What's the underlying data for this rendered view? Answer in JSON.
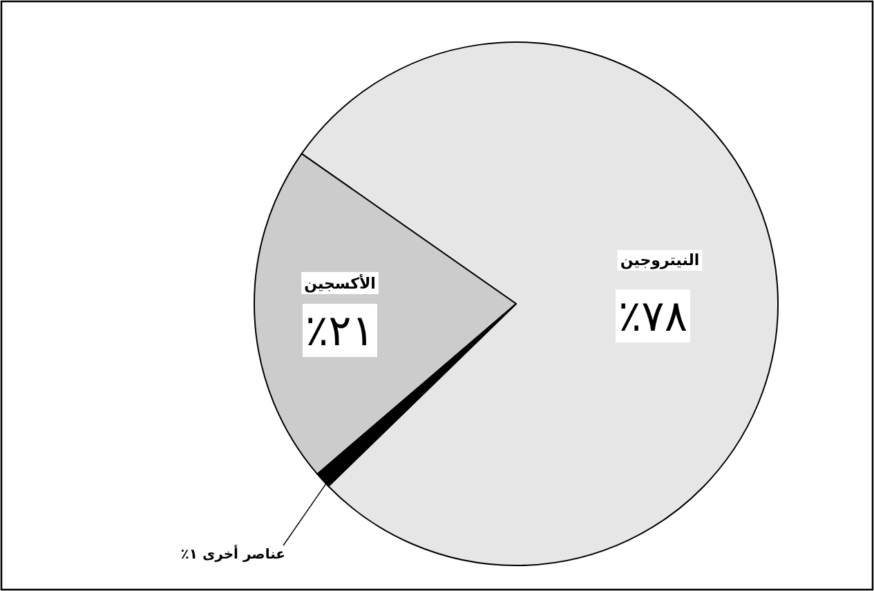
{
  "chart_data": {
    "type": "pie",
    "categories": [
      "النيتروجين",
      "الأكسجين",
      "عناصر أخرى"
    ],
    "values": [
      78,
      21,
      1
    ],
    "value_labels": [
      "٧٨٪",
      "٢١٪",
      "١٪"
    ],
    "colors": [
      "#e6e6e6",
      "#cccccc",
      "#000000"
    ]
  }
}
